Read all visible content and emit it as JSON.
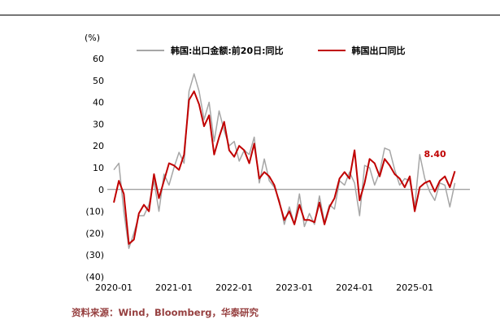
{
  "colors": {
    "gray_line": "#A6A6A6",
    "red_line": "#C00000",
    "annotation": "#C00000",
    "axis_text": "#000000",
    "zero_line": "#808080",
    "footer_text": "#964040"
  },
  "footer": {
    "source_text": "资料来源：Wind，Bloomberg，华泰研究"
  },
  "chart_data": {
    "type": "line",
    "title": "",
    "xlabel": "",
    "ylabel": "(%)",
    "ylim": [
      -40,
      60
    ],
    "grid": false,
    "legend_position": "top",
    "yticks": [
      60,
      50,
      40,
      30,
      20,
      10,
      0,
      -10,
      -20,
      -30,
      -40
    ],
    "ytick_labels": [
      "60",
      "50",
      "40",
      "30",
      "20",
      "10",
      "0",
      "(10)",
      "(20)",
      "(30)",
      "(40)"
    ],
    "xtick_labels": [
      "2020-01",
      "2021-01",
      "2022-01",
      "2023-01",
      "2024-01",
      "2025-01"
    ],
    "xtick_month_index": [
      0,
      12,
      24,
      36,
      48,
      60
    ],
    "x_domain_months": 72,
    "x": [
      "2020-01",
      "2020-02",
      "2020-03",
      "2020-04",
      "2020-05",
      "2020-06",
      "2020-07",
      "2020-08",
      "2020-09",
      "2020-10",
      "2020-11",
      "2020-12",
      "2021-01",
      "2021-02",
      "2021-03",
      "2021-04",
      "2021-05",
      "2021-06",
      "2021-07",
      "2021-08",
      "2021-09",
      "2021-10",
      "2021-11",
      "2021-12",
      "2022-01",
      "2022-02",
      "2022-03",
      "2022-04",
      "2022-05",
      "2022-06",
      "2022-07",
      "2022-08",
      "2022-09",
      "2022-10",
      "2022-11",
      "2022-12",
      "2023-01",
      "2023-02",
      "2023-03",
      "2023-04",
      "2023-05",
      "2023-06",
      "2023-07",
      "2023-08",
      "2023-09",
      "2023-10",
      "2023-11",
      "2023-12",
      "2024-01",
      "2024-02",
      "2024-03",
      "2024-04",
      "2024-05",
      "2024-06",
      "2024-07",
      "2024-08",
      "2024-09",
      "2024-10",
      "2024-11",
      "2024-12",
      "2025-01",
      "2025-02",
      "2025-03",
      "2025-04",
      "2025-05",
      "2025-06",
      "2025-07",
      "2025-08",
      "2025-09"
    ],
    "series": [
      {
        "name": "韩国:出口金额:前20日:同比",
        "color": "#A6A6A6",
        "stroke_width": 1.5,
        "values": [
          9,
          12,
          -10,
          -27,
          -20,
          -12,
          -12,
          -7,
          4,
          -10,
          7,
          2,
          10,
          17,
          12,
          45,
          53,
          45,
          32,
          40,
          22,
          36,
          27,
          20,
          22,
          13,
          18,
          16,
          24,
          3,
          14,
          4,
          1,
          -5,
          -16,
          -8,
          -16,
          -2,
          -17,
          -11,
          -16,
          -3,
          -15,
          -7,
          -9,
          4,
          2,
          8,
          3,
          -12,
          11,
          10,
          2,
          8,
          19,
          18,
          9,
          2,
          5,
          4,
          -8,
          16,
          5,
          -1,
          -5,
          3,
          2,
          -8,
          3
        ]
      },
      {
        "name": "韩国出口同比",
        "color": "#C00000",
        "stroke_width": 2,
        "values": [
          -6,
          4,
          -2,
          -25,
          -23,
          -11,
          -7,
          -10,
          7,
          -4,
          4,
          12,
          11,
          9,
          16,
          41,
          45,
          39,
          29,
          34,
          16,
          24,
          31,
          18,
          15,
          20,
          18,
          12,
          21,
          5,
          8,
          6,
          2,
          -6,
          -14,
          -10,
          -16,
          -7,
          -14,
          -14,
          -15,
          -6,
          -16,
          -8,
          -4,
          5,
          8,
          5,
          18,
          -5,
          3,
          14,
          12,
          6,
          14,
          11,
          7,
          5,
          1,
          6,
          -10,
          1,
          3,
          4,
          -1,
          4,
          6,
          1,
          8.4
        ]
      }
    ],
    "annotation": {
      "text": "8.40",
      "series": "韩国出口同比",
      "x": "2025-09",
      "value": 8.4
    }
  }
}
